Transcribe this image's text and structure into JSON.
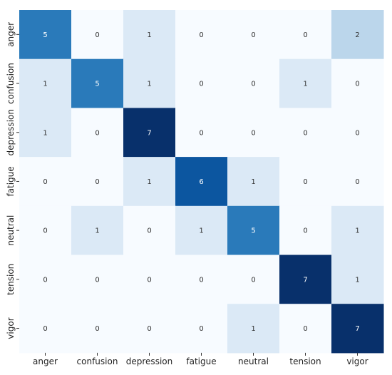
{
  "chart_data": {
    "type": "heatmap",
    "title": "",
    "xlabel": "",
    "ylabel": "",
    "x_categories": [
      "anger",
      "confusion",
      "depression",
      "fatigue",
      "neutral",
      "tension",
      "vigor"
    ],
    "y_categories": [
      "anger",
      "confusion",
      "depression",
      "fatigue",
      "neutral",
      "tension",
      "vigor"
    ],
    "values": [
      [
        5,
        0,
        1,
        0,
        0,
        0,
        2
      ],
      [
        1,
        5,
        1,
        0,
        0,
        1,
        0
      ],
      [
        1,
        0,
        7,
        0,
        0,
        0,
        0
      ],
      [
        0,
        0,
        1,
        6,
        1,
        0,
        0
      ],
      [
        0,
        1,
        0,
        1,
        5,
        0,
        1
      ],
      [
        0,
        0,
        0,
        0,
        0,
        7,
        1
      ],
      [
        0,
        0,
        0,
        0,
        1,
        0,
        7
      ]
    ],
    "value_range": [
      0,
      7
    ],
    "colormap": "Blues",
    "colors": {
      "low": "#f7fbff",
      "high": "#08306b",
      "text_dark": "#333333",
      "text_light": "#ffffff"
    },
    "colorbar": false,
    "grid": false
  }
}
